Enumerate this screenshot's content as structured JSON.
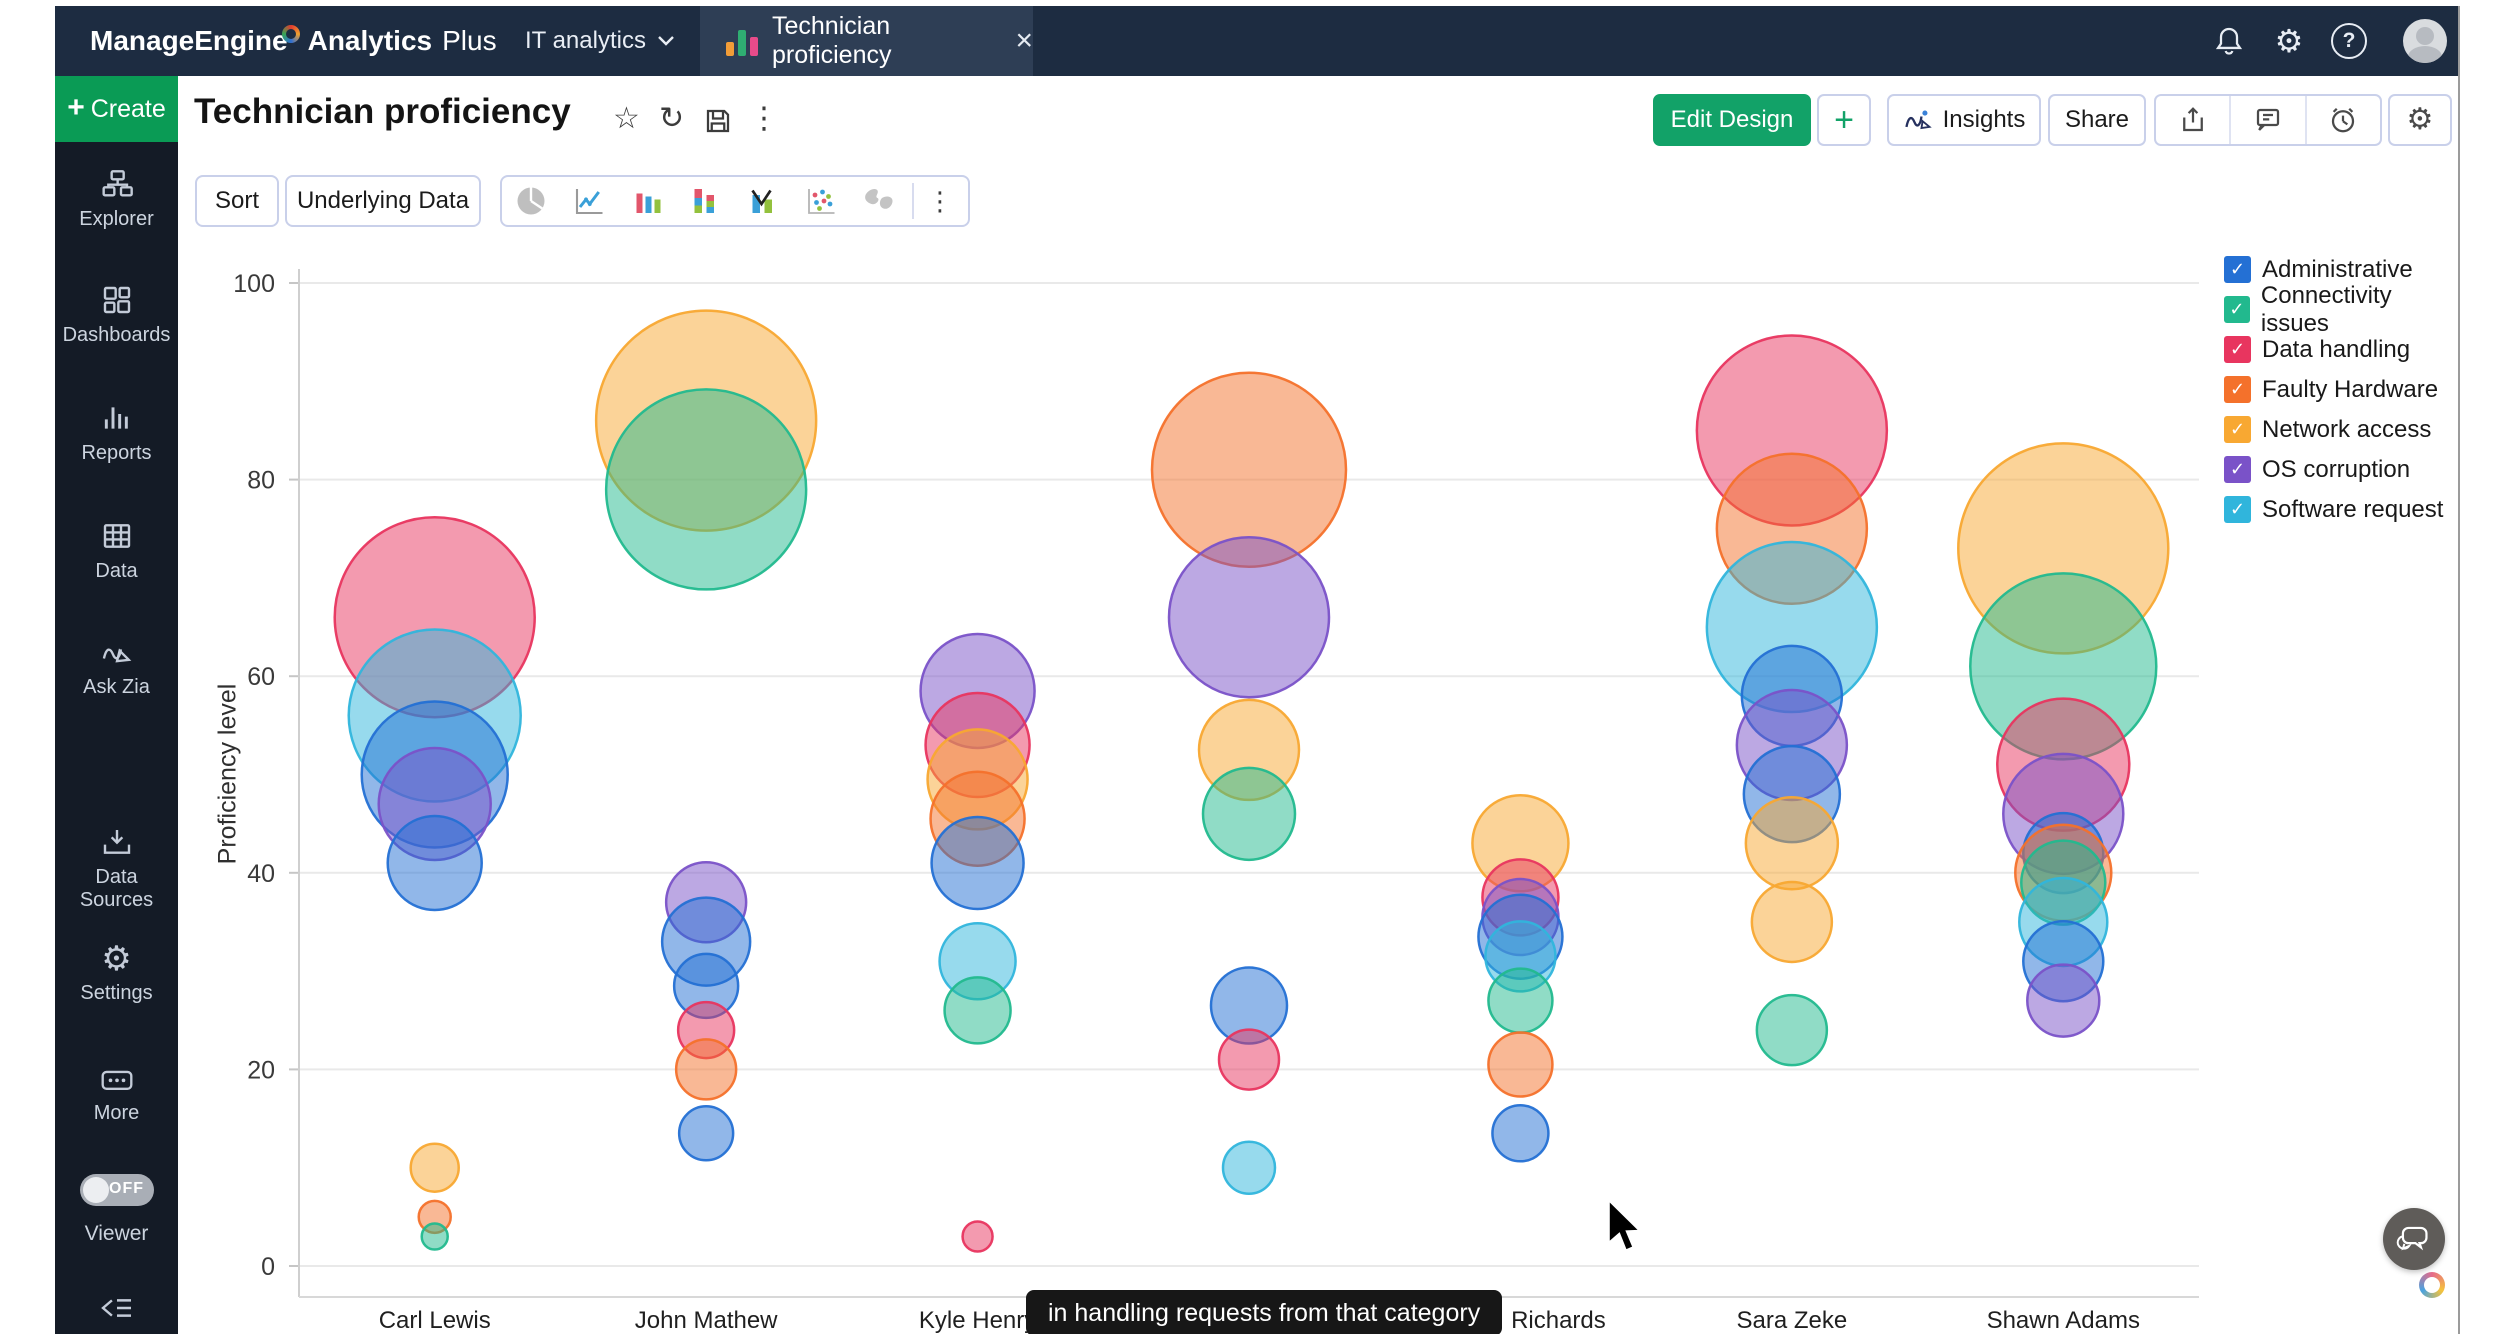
{
  "topbar": {
    "brand_primary": "ManageEngine",
    "brand_secondary": "Analytics",
    "brand_tertiary": "Plus",
    "workspace_label": "IT analytics",
    "tab_title": "Technician proficiency",
    "tab_close": "×"
  },
  "sidebar": {
    "create_label": "Create",
    "create_plus": "+",
    "items": [
      {
        "label": "Explorer"
      },
      {
        "label": "Dashboards"
      },
      {
        "label": "Reports"
      },
      {
        "label": "Data"
      },
      {
        "label": "Ask Zia"
      },
      {
        "label": "Data Sources"
      },
      {
        "label": "Settings"
      },
      {
        "label": "More"
      }
    ],
    "viewer_label": "Viewer",
    "viewer_state": "OFF"
  },
  "header": {
    "title": "Technician proficiency",
    "edit_design_label": "Edit Design",
    "add_label": "+",
    "insights_label": "Insights",
    "share_label": "Share"
  },
  "toolbar": {
    "sort_label": "Sort",
    "underlying_label": "Underlying Data"
  },
  "topbar_icons": [
    "bell-icon",
    "gear-icon",
    "help-icon",
    "avatar"
  ],
  "header_icons": [
    "star-icon",
    "refresh-icon",
    "save-icon",
    "kebab-menu-icon",
    "export-icon",
    "comment-icon",
    "alarm-icon",
    "settings-icon"
  ],
  "chart_type_icons": [
    "pie-chart-icon",
    "line-chart-icon",
    "bar-chart-icon",
    "stacked-bar-icon",
    "combo-chart-icon",
    "scatter-icon",
    "map-icon"
  ],
  "tooltip_text": "in handling requests from that category",
  "chart_data": {
    "type": "bubble",
    "title": "Technician proficiency",
    "xlabel": "",
    "ylabel": "Proficiency level",
    "ylim": [
      0,
      100
    ],
    "yticks": [
      0,
      20,
      40,
      60,
      80,
      100
    ],
    "grid": true,
    "legend_position": "right",
    "point_format": "[category_index, proficiency_value, bubble_radius_px]",
    "categories": [
      {
        "label": "Carl Lewis",
        "dx": 0
      },
      {
        "label": "John Mathew",
        "dx": 0
      },
      {
        "label": "Kyle Henry",
        "dx": 0
      },
      {
        "label": "",
        "dx": 0
      },
      {
        "label": "Richards",
        "dx": 38
      },
      {
        "label": "Sara Zeke",
        "dx": 0
      },
      {
        "label": "Shawn Adams",
        "dx": 0
      }
    ],
    "series": [
      {
        "name": "Administrative",
        "color": "#2470d4",
        "points": [
          [
            0,
            50,
            73
          ],
          [
            0,
            41,
            47
          ],
          [
            1,
            33,
            44
          ],
          [
            1,
            28.5,
            32
          ],
          [
            1,
            13.5,
            27
          ],
          [
            2,
            41,
            46
          ],
          [
            3,
            26.5,
            38
          ],
          [
            4,
            33.5,
            42
          ],
          [
            4,
            13.5,
            28
          ],
          [
            5,
            58,
            50
          ],
          [
            5,
            48,
            48
          ],
          [
            6,
            42,
            40
          ],
          [
            6,
            31,
            40
          ]
        ]
      },
      {
        "name": "Connectivity issues",
        "color": "#22b98e",
        "points": [
          [
            0,
            3,
            13
          ],
          [
            1,
            79,
            100
          ],
          [
            2,
            26,
            33
          ],
          [
            3,
            46,
            46
          ],
          [
            4,
            27,
            32
          ],
          [
            5,
            24,
            35
          ],
          [
            6,
            61,
            93
          ],
          [
            6,
            39,
            42
          ]
        ]
      },
      {
        "name": "Data handling",
        "color": "#e8355f",
        "points": [
          [
            0,
            66,
            100
          ],
          [
            1,
            24,
            28
          ],
          [
            2,
            53,
            52
          ],
          [
            2,
            3,
            15
          ],
          [
            3,
            21,
            30
          ],
          [
            4,
            37.5,
            38
          ],
          [
            5,
            85,
            95
          ],
          [
            6,
            51,
            66
          ]
        ]
      },
      {
        "name": "Faulty Hardware",
        "color": "#f4712b",
        "points": [
          [
            0,
            5,
            16
          ],
          [
            1,
            20,
            30
          ],
          [
            2,
            45.5,
            47
          ],
          [
            3,
            81,
            97
          ],
          [
            4,
            20.5,
            32
          ],
          [
            5,
            75,
            75
          ],
          [
            6,
            40,
            48
          ]
        ]
      },
      {
        "name": "Network access",
        "color": "#f8a832",
        "points": [
          [
            0,
            10,
            24
          ],
          [
            1,
            86,
            110
          ],
          [
            2,
            49.5,
            50
          ],
          [
            3,
            52.5,
            50
          ],
          [
            4,
            43,
            48
          ],
          [
            5,
            43,
            46
          ],
          [
            5,
            35,
            40
          ],
          [
            6,
            73,
            105
          ]
        ]
      },
      {
        "name": "OS corruption",
        "color": "#7a52c8",
        "points": [
          [
            0,
            47,
            56
          ],
          [
            1,
            37,
            40
          ],
          [
            2,
            58.5,
            57
          ],
          [
            3,
            66,
            80
          ],
          [
            4,
            35.5,
            38
          ],
          [
            5,
            53,
            55
          ],
          [
            6,
            46,
            60
          ],
          [
            6,
            27,
            36
          ]
        ]
      },
      {
        "name": "Software request",
        "color": "#30b5dc",
        "points": [
          [
            0,
            56,
            86
          ],
          [
            2,
            31,
            38
          ],
          [
            3,
            10,
            26
          ],
          [
            4,
            31.5,
            35
          ],
          [
            5,
            65,
            85
          ],
          [
            6,
            35,
            44
          ]
        ]
      }
    ]
  }
}
